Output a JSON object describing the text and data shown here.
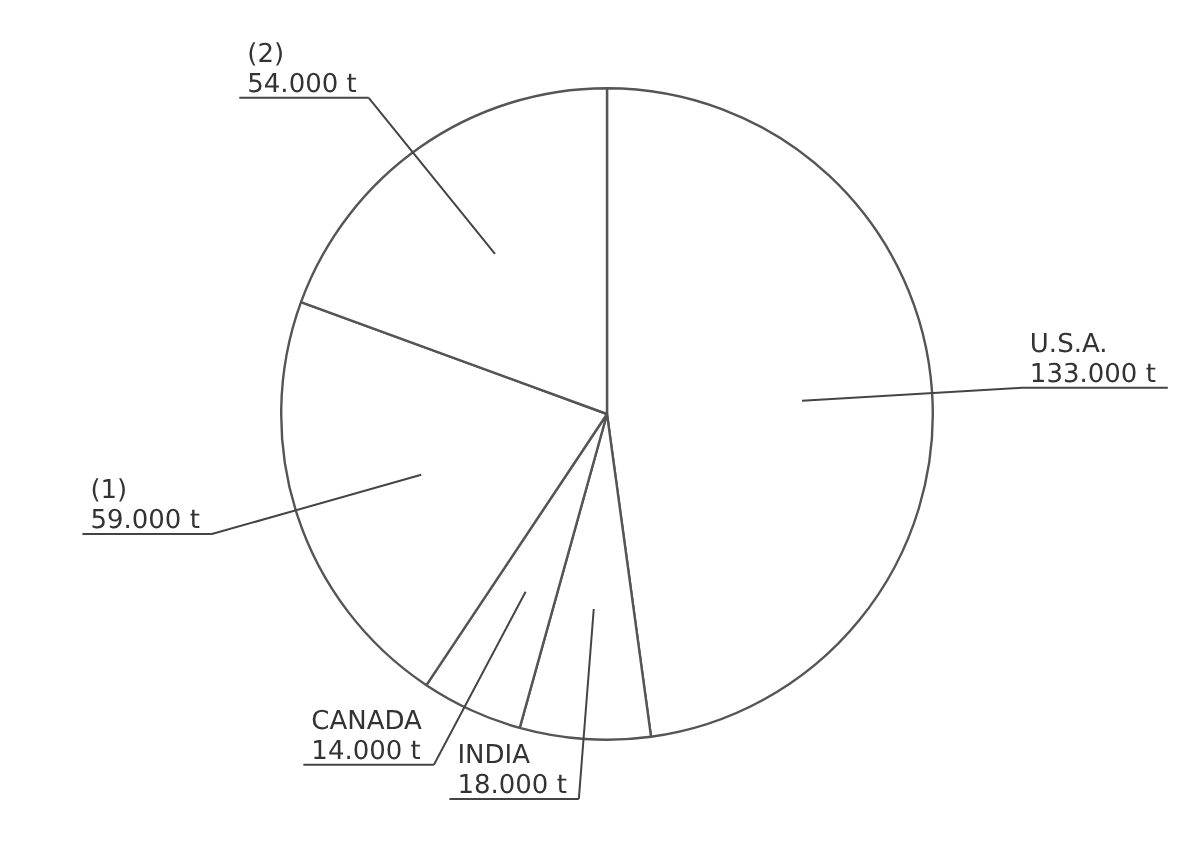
{
  "chart_data": {
    "type": "pie",
    "categories": [
      "U.S.A.",
      "INDIA",
      "CANADA",
      "(1)",
      "(2)"
    ],
    "values": [
      133,
      18,
      14,
      59,
      54
    ],
    "value_labels": [
      "133.000 t",
      "18.000 t",
      "14.000 t",
      "59.000 t",
      "54.000 t"
    ],
    "colors": [
      "#ffffff",
      "#ffffff",
      "#ffffff",
      "#ffffff",
      "#ffffff"
    ],
    "legend": false
  }
}
